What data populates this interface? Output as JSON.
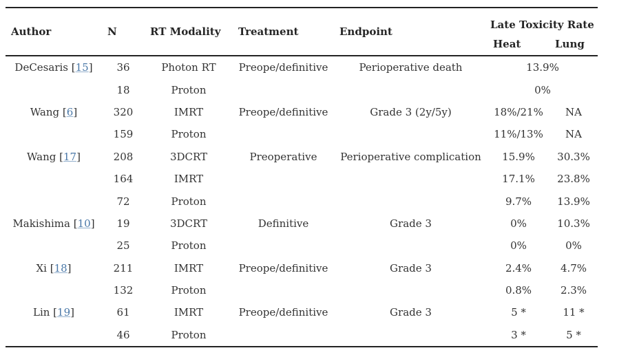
{
  "colors": {
    "text": "#333333",
    "link": "#4a78a8",
    "rule": "#222222",
    "background": "#ffffff"
  },
  "table": {
    "columns": {
      "author": "Author",
      "n": "N",
      "modality": "RT Modality",
      "treatment": "Treatment",
      "endpoint": "Endpoint",
      "toxicity_group": "Late Toxicity Rate",
      "heat": "Heat",
      "lung": "Lung"
    },
    "rows": [
      {
        "author": "DeCesaris",
        "ref": "15",
        "n": "36",
        "modality": "Photon RT",
        "treatment": "Preope/definitive",
        "endpoint": "Perioperative death",
        "toxicity_span": "13.9%"
      },
      {
        "n": "18",
        "modality": "Proton",
        "toxicity_span": "0%"
      },
      {
        "author": "Wang",
        "ref": "6",
        "n": "320",
        "modality": "IMRT",
        "treatment": "Preope/definitive",
        "endpoint": "Grade 3 (2y/5y)",
        "heat": "18%/21%",
        "lung": "NA"
      },
      {
        "n": "159",
        "modality": "Proton",
        "heat": "11%/13%",
        "lung": "NA"
      },
      {
        "author": "Wang",
        "ref": "17",
        "n": "208",
        "modality": "3DCRT",
        "treatment": "Preoperative",
        "endpoint": "Perioperative complication",
        "heat": "15.9%",
        "lung": "30.3%"
      },
      {
        "n": "164",
        "modality": "IMRT",
        "heat": "17.1%",
        "lung": "23.8%"
      },
      {
        "n": "72",
        "modality": "Proton",
        "heat": "9.7%",
        "lung": "13.9%"
      },
      {
        "author": "Makishima",
        "ref": "10",
        "n": "19",
        "modality": "3DCRT",
        "treatment": "Definitive",
        "endpoint": "Grade 3",
        "heat": "0%",
        "lung": "10.3%"
      },
      {
        "n": "25",
        "modality": "Proton",
        "heat": "0%",
        "lung": "0%"
      },
      {
        "author": "Xi",
        "ref": "18",
        "n": "211",
        "modality": "IMRT",
        "treatment": "Preope/definitive",
        "endpoint": "Grade 3",
        "heat": "2.4%",
        "lung": "4.7%"
      },
      {
        "n": "132",
        "modality": "Proton",
        "heat": "0.8%",
        "lung": "2.3%"
      },
      {
        "author": "Lin",
        "ref": "19",
        "n": "61",
        "modality": "IMRT",
        "treatment": "Preope/definitive",
        "endpoint": "Grade 3",
        "heat": "5 *",
        "lung": "11 *"
      },
      {
        "n": "46",
        "modality": "Proton",
        "heat": "3 *",
        "lung": "5 *"
      }
    ]
  }
}
